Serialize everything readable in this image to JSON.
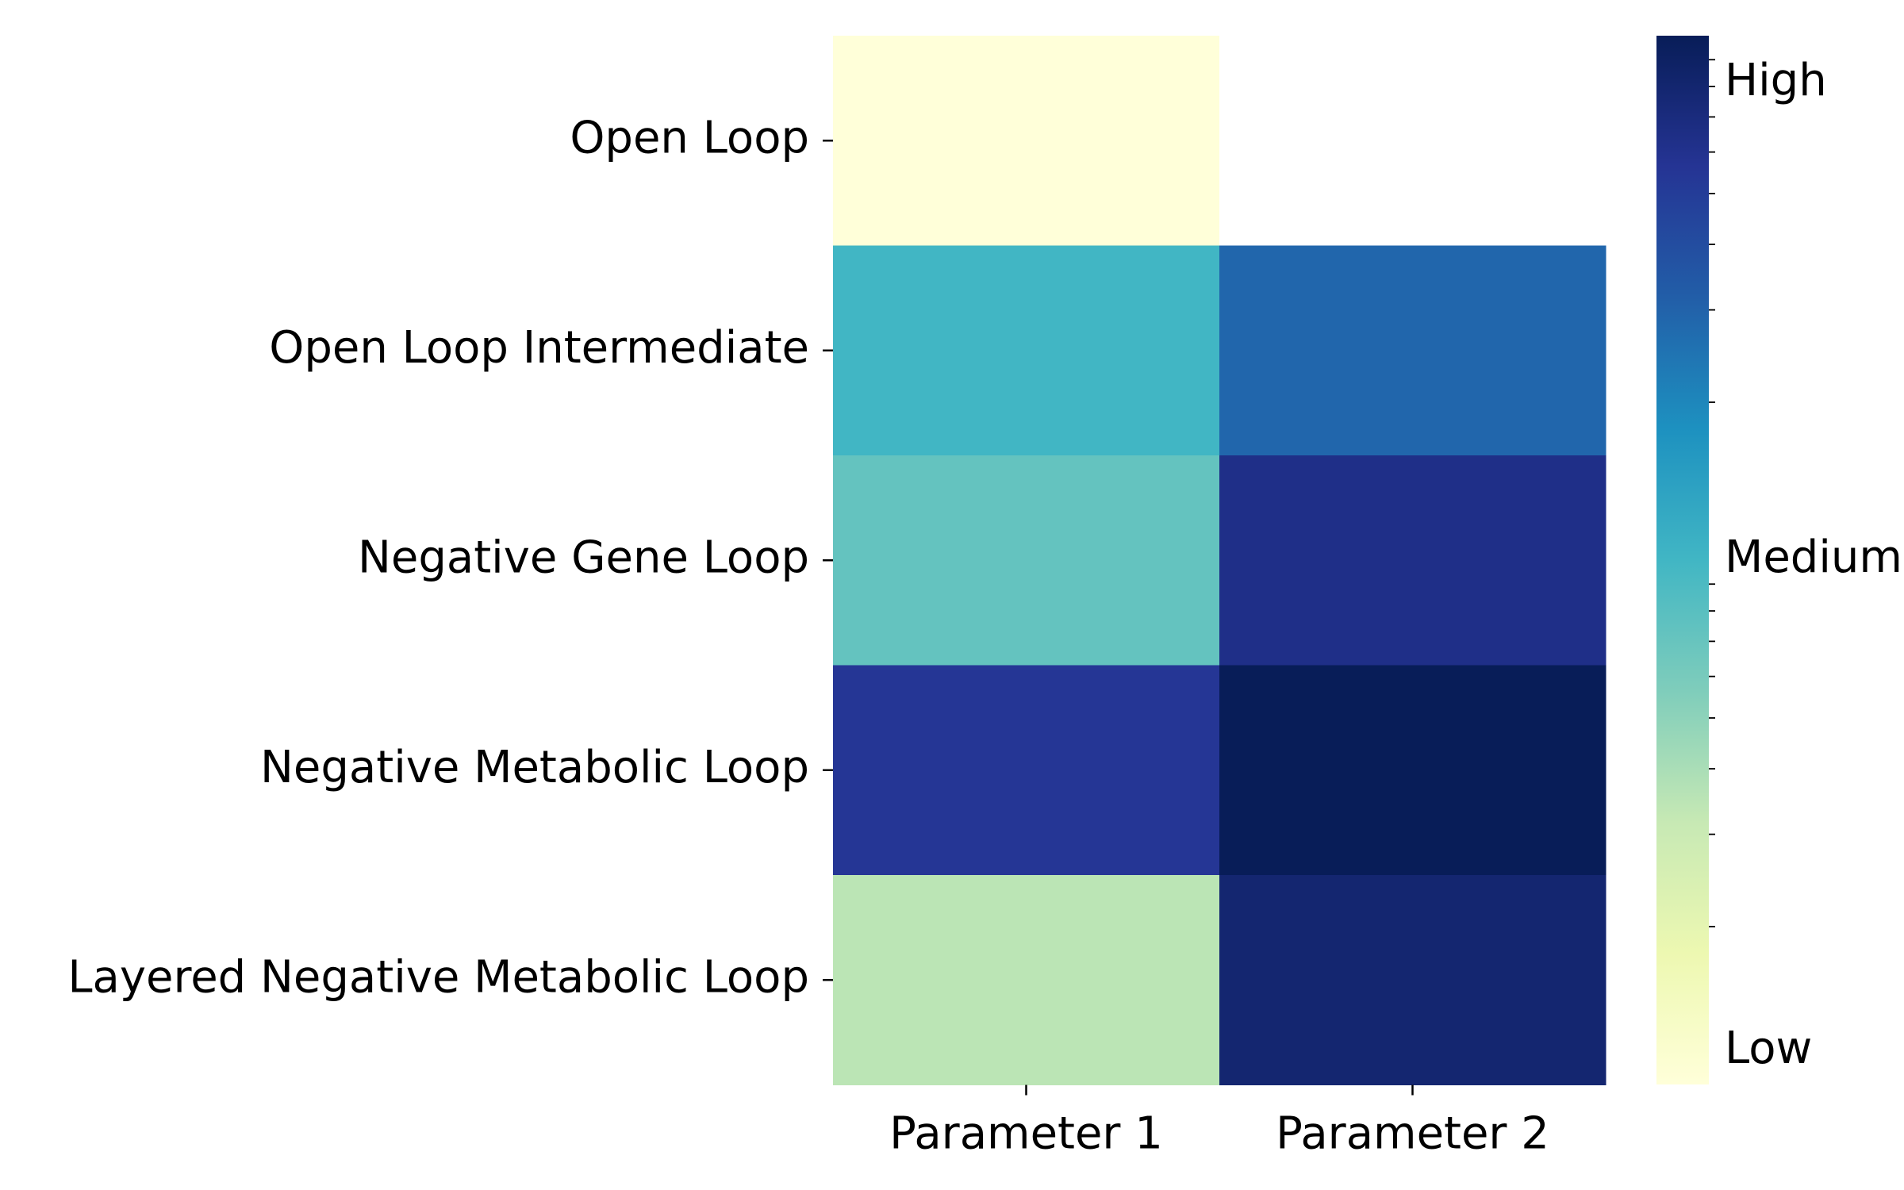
{
  "chart_data": {
    "type": "heatmap",
    "title": "",
    "xlabel": "",
    "ylabel": "",
    "columns": [
      "Parameter 1",
      "Parameter 2"
    ],
    "rows": [
      "Open Loop",
      "Open Loop Intermediate",
      "Negative Gene Loop",
      "Negative Metabolic Loop",
      "Layered Negative Metabolic Loop"
    ],
    "values": [
      [
        0.0,
        null
      ],
      [
        0.5,
        0.73
      ],
      [
        0.43,
        0.9
      ],
      [
        0.87,
        1.0
      ],
      [
        0.27,
        0.95
      ]
    ],
    "colormap": "YlGnBu",
    "colormap_stops": [
      "#ffffd9",
      "#edf8b1",
      "#c7e9b4",
      "#7fcdbb",
      "#41b6c4",
      "#1d91c0",
      "#225ea8",
      "#253494",
      "#081d58"
    ],
    "colorbar": {
      "range": [
        0,
        1
      ],
      "tick_labels": [
        "Low",
        "Medium",
        "High"
      ],
      "tick_values": [
        0.0,
        0.5,
        1.0
      ],
      "minor_ticks_log_spacing": true
    },
    "missing_color": "#ffffff"
  }
}
